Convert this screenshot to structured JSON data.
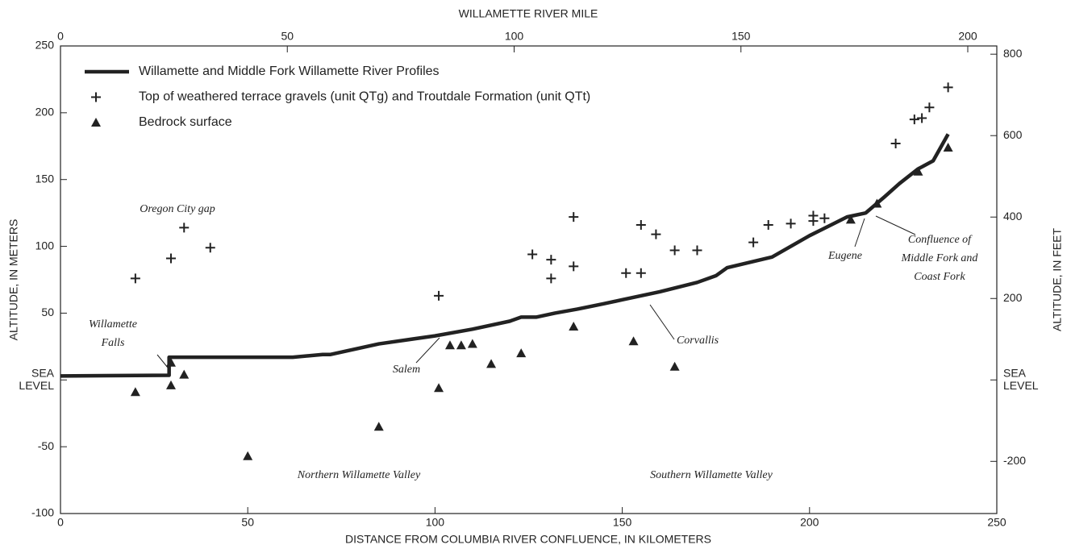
{
  "chart_data": {
    "type": "line",
    "title_top": "WILLAMETTE RIVER MILE",
    "xlabel": "DISTANCE FROM COLUMBIA RIVER CONFLUENCE, IN KILOMETERS",
    "ylabel": "ALTITUDE, IN METERS",
    "y2label": "ALTITUDE, IN FEET",
    "xlim": [
      0,
      250
    ],
    "xticks": [
      0,
      50,
      100,
      150,
      200,
      250
    ],
    "ylim": [
      -100,
      250
    ],
    "yticks": [
      -100,
      -50,
      {
        "value": 0,
        "label": "SEA LEVEL"
      },
      50,
      100,
      150,
      200,
      250
    ],
    "x2lim": [
      0,
      206.4
    ],
    "x2ticks": [
      0,
      50,
      100,
      150,
      200
    ],
    "y2lim": [
      -328.1,
      820.2
    ],
    "y2ticks": [
      -200,
      {
        "value": 0,
        "label": "SEA LEVEL"
      },
      200,
      400,
      600,
      800
    ],
    "legend": "upper left",
    "series": [
      {
        "name": "Willamette and Middle Fork Willamette River Profiles",
        "marker": "line",
        "color": "#222222",
        "x": [
          0,
          29,
          29,
          62,
          70,
          72,
          85,
          100,
          110,
          120,
          123,
          127,
          132,
          138,
          145,
          150,
          160,
          170,
          175,
          178,
          190,
          195,
          200,
          205,
          210,
          215,
          220,
          224,
          229,
          233,
          237
        ],
        "values": [
          3,
          3.5,
          17,
          17,
          19,
          19,
          27,
          33,
          38,
          44,
          47,
          47,
          50,
          53,
          57,
          60,
          66,
          73,
          78,
          84,
          92,
          100,
          108,
          115,
          122,
          125,
          137,
          147,
          158,
          164,
          184
        ]
      },
      {
        "name": "Top of weathered terrace gravels (unit QTg) and Troutdale Formation (unit QTt)",
        "marker": "plus",
        "color": "#222222",
        "x": [
          20,
          29.5,
          33,
          40,
          101,
          126,
          131,
          131,
          137,
          137,
          151,
          155,
          155,
          159,
          164,
          170,
          185,
          189,
          195,
          201,
          201,
          204,
          223,
          228,
          230,
          232,
          237
        ],
        "values": [
          76,
          91,
          114,
          99,
          63,
          94,
          90,
          76,
          122,
          85,
          80,
          116,
          80,
          109,
          97,
          97,
          103,
          116,
          117,
          123,
          119,
          121,
          177,
          195,
          196,
          204,
          219
        ]
      },
      {
        "name": "Bedrock surface",
        "marker": "triangle",
        "color": "#222222",
        "x": [
          20,
          29.5,
          29.5,
          33,
          50,
          85,
          101,
          104,
          107,
          110,
          115,
          123,
          137,
          153,
          164,
          211,
          218,
          229,
          237
        ],
        "values": [
          -9,
          -4,
          13,
          4,
          -57,
          -35,
          -6,
          26,
          26,
          27,
          12,
          20,
          40,
          29,
          10,
          120,
          132,
          156,
          174
        ]
      }
    ],
    "annotations": [
      "Oregon City gap",
      [
        "Willamette",
        "Falls"
      ],
      "Salem",
      "Corvallis",
      "Eugene",
      [
        "Confluence of",
        "Middle Fork and",
        "Coast Fork"
      ],
      "Northern Willamette Valley",
      "Southern Willamette Valley"
    ]
  }
}
